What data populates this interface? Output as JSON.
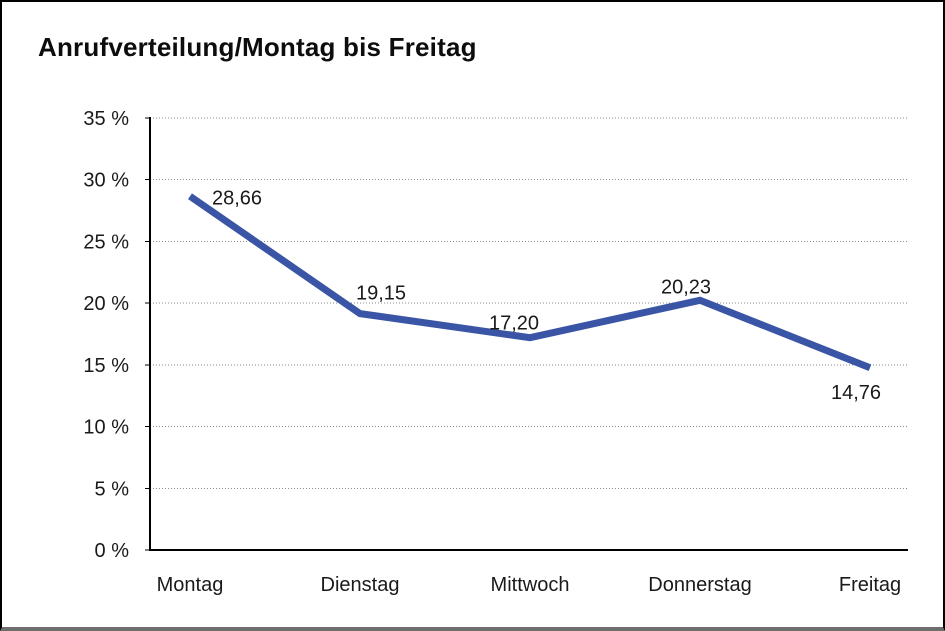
{
  "chart_data": {
    "type": "line",
    "title": "Anrufverteilung/Montag bis Freitag",
    "categories": [
      "Montag",
      "Dienstag",
      "Mittwoch",
      "Donnerstag",
      "Freitag"
    ],
    "values": [
      28.66,
      19.15,
      17.2,
      20.23,
      14.76
    ],
    "point_labels": [
      "28,66",
      "19,15",
      "17,20",
      "20,23",
      "14,76"
    ],
    "ylim": [
      0,
      35
    ],
    "ytick_step": 5,
    "ytick_suffix": " %",
    "ytick_labels": [
      "0 %",
      "5 %",
      "10 %",
      "15 %",
      "20 %",
      "25 %",
      "30 %",
      "35 %"
    ],
    "grid": "horizontal-dotted",
    "legend_position": "none",
    "colors": {
      "line": "#3A55A5",
      "grid": "#8a8a8a",
      "axis": "#000000",
      "text": "#1a1a1a",
      "frame_border": "#000000",
      "frame_bottom_border": "#6e6e6e"
    }
  }
}
